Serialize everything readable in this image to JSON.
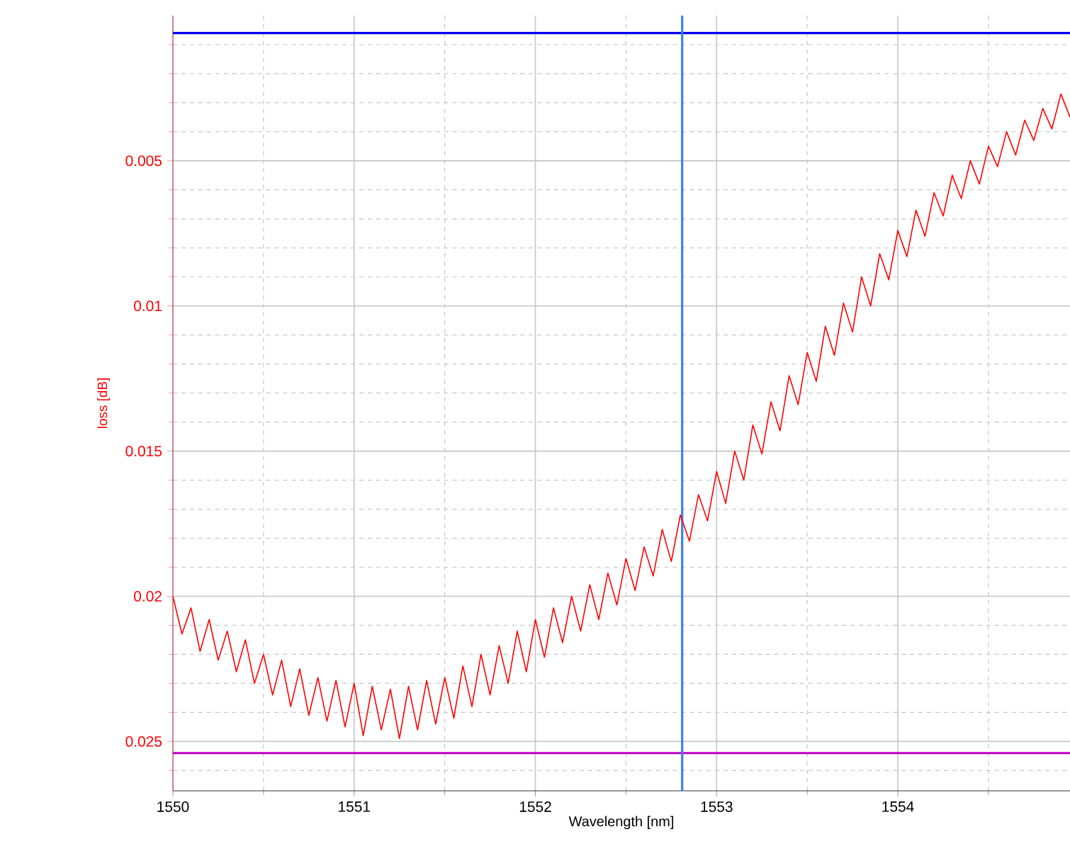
{
  "chart_data": {
    "type": "line",
    "xlabel": "Wavelength [nm]",
    "ylabel": "loss [dB]",
    "xlim": [
      1550,
      1554.95
    ],
    "ylim": [
      0.0267,
      0
    ],
    "xticks": [
      1550,
      {
        "value": 1550.5,
        "label": null
      },
      1551,
      {
        "value": 1551.5,
        "label": null
      },
      1552,
      {
        "value": 1552.5,
        "label": null
      },
      1553,
      {
        "value": 1553.5,
        "label": null
      },
      1554,
      {
        "value": 1554.5,
        "label": null
      }
    ],
    "yticks": [
      {
        "value": 0.001,
        "label": null
      },
      {
        "value": 0.002,
        "label": null
      },
      {
        "value": 0.003,
        "label": null
      },
      {
        "value": 0.004,
        "label": null
      },
      0.005,
      {
        "value": 0.006,
        "label": null
      },
      {
        "value": 0.007,
        "label": null
      },
      {
        "value": 0.008,
        "label": null
      },
      {
        "value": 0.009,
        "label": null
      },
      0.01,
      {
        "value": 0.011,
        "label": null
      },
      {
        "value": 0.012,
        "label": null
      },
      {
        "value": 0.013,
        "label": null
      },
      {
        "value": 0.014,
        "label": null
      },
      0.015,
      {
        "value": 0.016,
        "label": null
      },
      {
        "value": 0.017,
        "label": null
      },
      {
        "value": 0.018,
        "label": null
      },
      {
        "value": 0.019,
        "label": null
      },
      0.02,
      {
        "value": 0.021,
        "label": null
      },
      {
        "value": 0.022,
        "label": null
      },
      {
        "value": 0.023,
        "label": null
      },
      {
        "value": 0.024,
        "label": null
      },
      0.025,
      {
        "value": 0.026,
        "label": null
      }
    ],
    "grid": true,
    "x": [
      1550.0,
      1550.05,
      1550.1,
      1550.15,
      1550.2,
      1550.25,
      1550.3,
      1550.35,
      1550.4,
      1550.45,
      1550.5,
      1550.55,
      1550.6,
      1550.65,
      1550.7,
      1550.75,
      1550.8,
      1550.85,
      1550.9,
      1550.95,
      1551.0,
      1551.05,
      1551.1,
      1551.15,
      1551.2,
      1551.25,
      1551.3,
      1551.35,
      1551.4,
      1551.45,
      1551.5,
      1551.55,
      1551.6,
      1551.65,
      1551.7,
      1551.75,
      1551.8,
      1551.85,
      1551.9,
      1551.95,
      1552.0,
      1552.05,
      1552.1,
      1552.15,
      1552.2,
      1552.25,
      1552.3,
      1552.35,
      1552.4,
      1552.45,
      1552.5,
      1552.55,
      1552.6,
      1552.65,
      1552.7,
      1552.75,
      1552.8,
      1552.85,
      1552.9,
      1552.95,
      1553.0,
      1553.05,
      1553.1,
      1553.15,
      1553.2,
      1553.25,
      1553.3,
      1553.35,
      1553.4,
      1553.45,
      1553.5,
      1553.55,
      1553.6,
      1553.65,
      1553.7,
      1553.75,
      1553.8,
      1553.85,
      1553.9,
      1553.95,
      1554.0,
      1554.05,
      1554.1,
      1554.15,
      1554.2,
      1554.25,
      1554.3,
      1554.35,
      1554.4,
      1554.45,
      1554.5,
      1554.55,
      1554.6,
      1554.65,
      1554.7,
      1554.75,
      1554.8,
      1554.85,
      1554.9,
      1554.95
    ],
    "series": [
      {
        "color": "#ff0000",
        "values": [
          0.02,
          0.0213,
          0.0204,
          0.0219,
          0.0208,
          0.0222,
          0.0212,
          0.0226,
          0.0215,
          0.023,
          0.022,
          0.0234,
          0.0222,
          0.0238,
          0.0225,
          0.0241,
          0.0228,
          0.0243,
          0.0229,
          0.0245,
          0.023,
          0.0248,
          0.0231,
          0.0246,
          0.0232,
          0.0249,
          0.0231,
          0.0246,
          0.0229,
          0.0244,
          0.0228,
          0.0242,
          0.0224,
          0.0238,
          0.022,
          0.0234,
          0.0217,
          0.023,
          0.0212,
          0.0226,
          0.0208,
          0.0221,
          0.0204,
          0.0216,
          0.02,
          0.0212,
          0.0196,
          0.0208,
          0.0192,
          0.0203,
          0.0187,
          0.0198,
          0.0183,
          0.0193,
          0.0177,
          0.0188,
          0.0172,
          0.0181,
          0.0165,
          0.0174,
          0.0157,
          0.0168,
          0.015,
          0.016,
          0.0141,
          0.0151,
          0.0133,
          0.0143,
          0.0124,
          0.0134,
          0.0116,
          0.0126,
          0.0107,
          0.0117,
          0.0099,
          0.0109,
          0.009,
          0.01,
          0.0082,
          0.0091,
          0.0074,
          0.0083,
          0.0067,
          0.0076,
          0.0061,
          0.0069,
          0.0055,
          0.0063,
          0.005,
          0.0058,
          0.0045,
          0.0052,
          0.004,
          0.0048,
          0.0036,
          0.0043,
          0.0032,
          0.0039,
          0.0027,
          0.0035
        ]
      }
    ],
    "ref_lines": [
      {
        "axis": "y",
        "value": 0.0006,
        "color": "#0000ee"
      },
      {
        "axis": "y",
        "value": 0.0254,
        "color": "#c000c0"
      },
      {
        "axis": "x",
        "value": 1552.81,
        "color": "#3a80f0"
      }
    ]
  }
}
